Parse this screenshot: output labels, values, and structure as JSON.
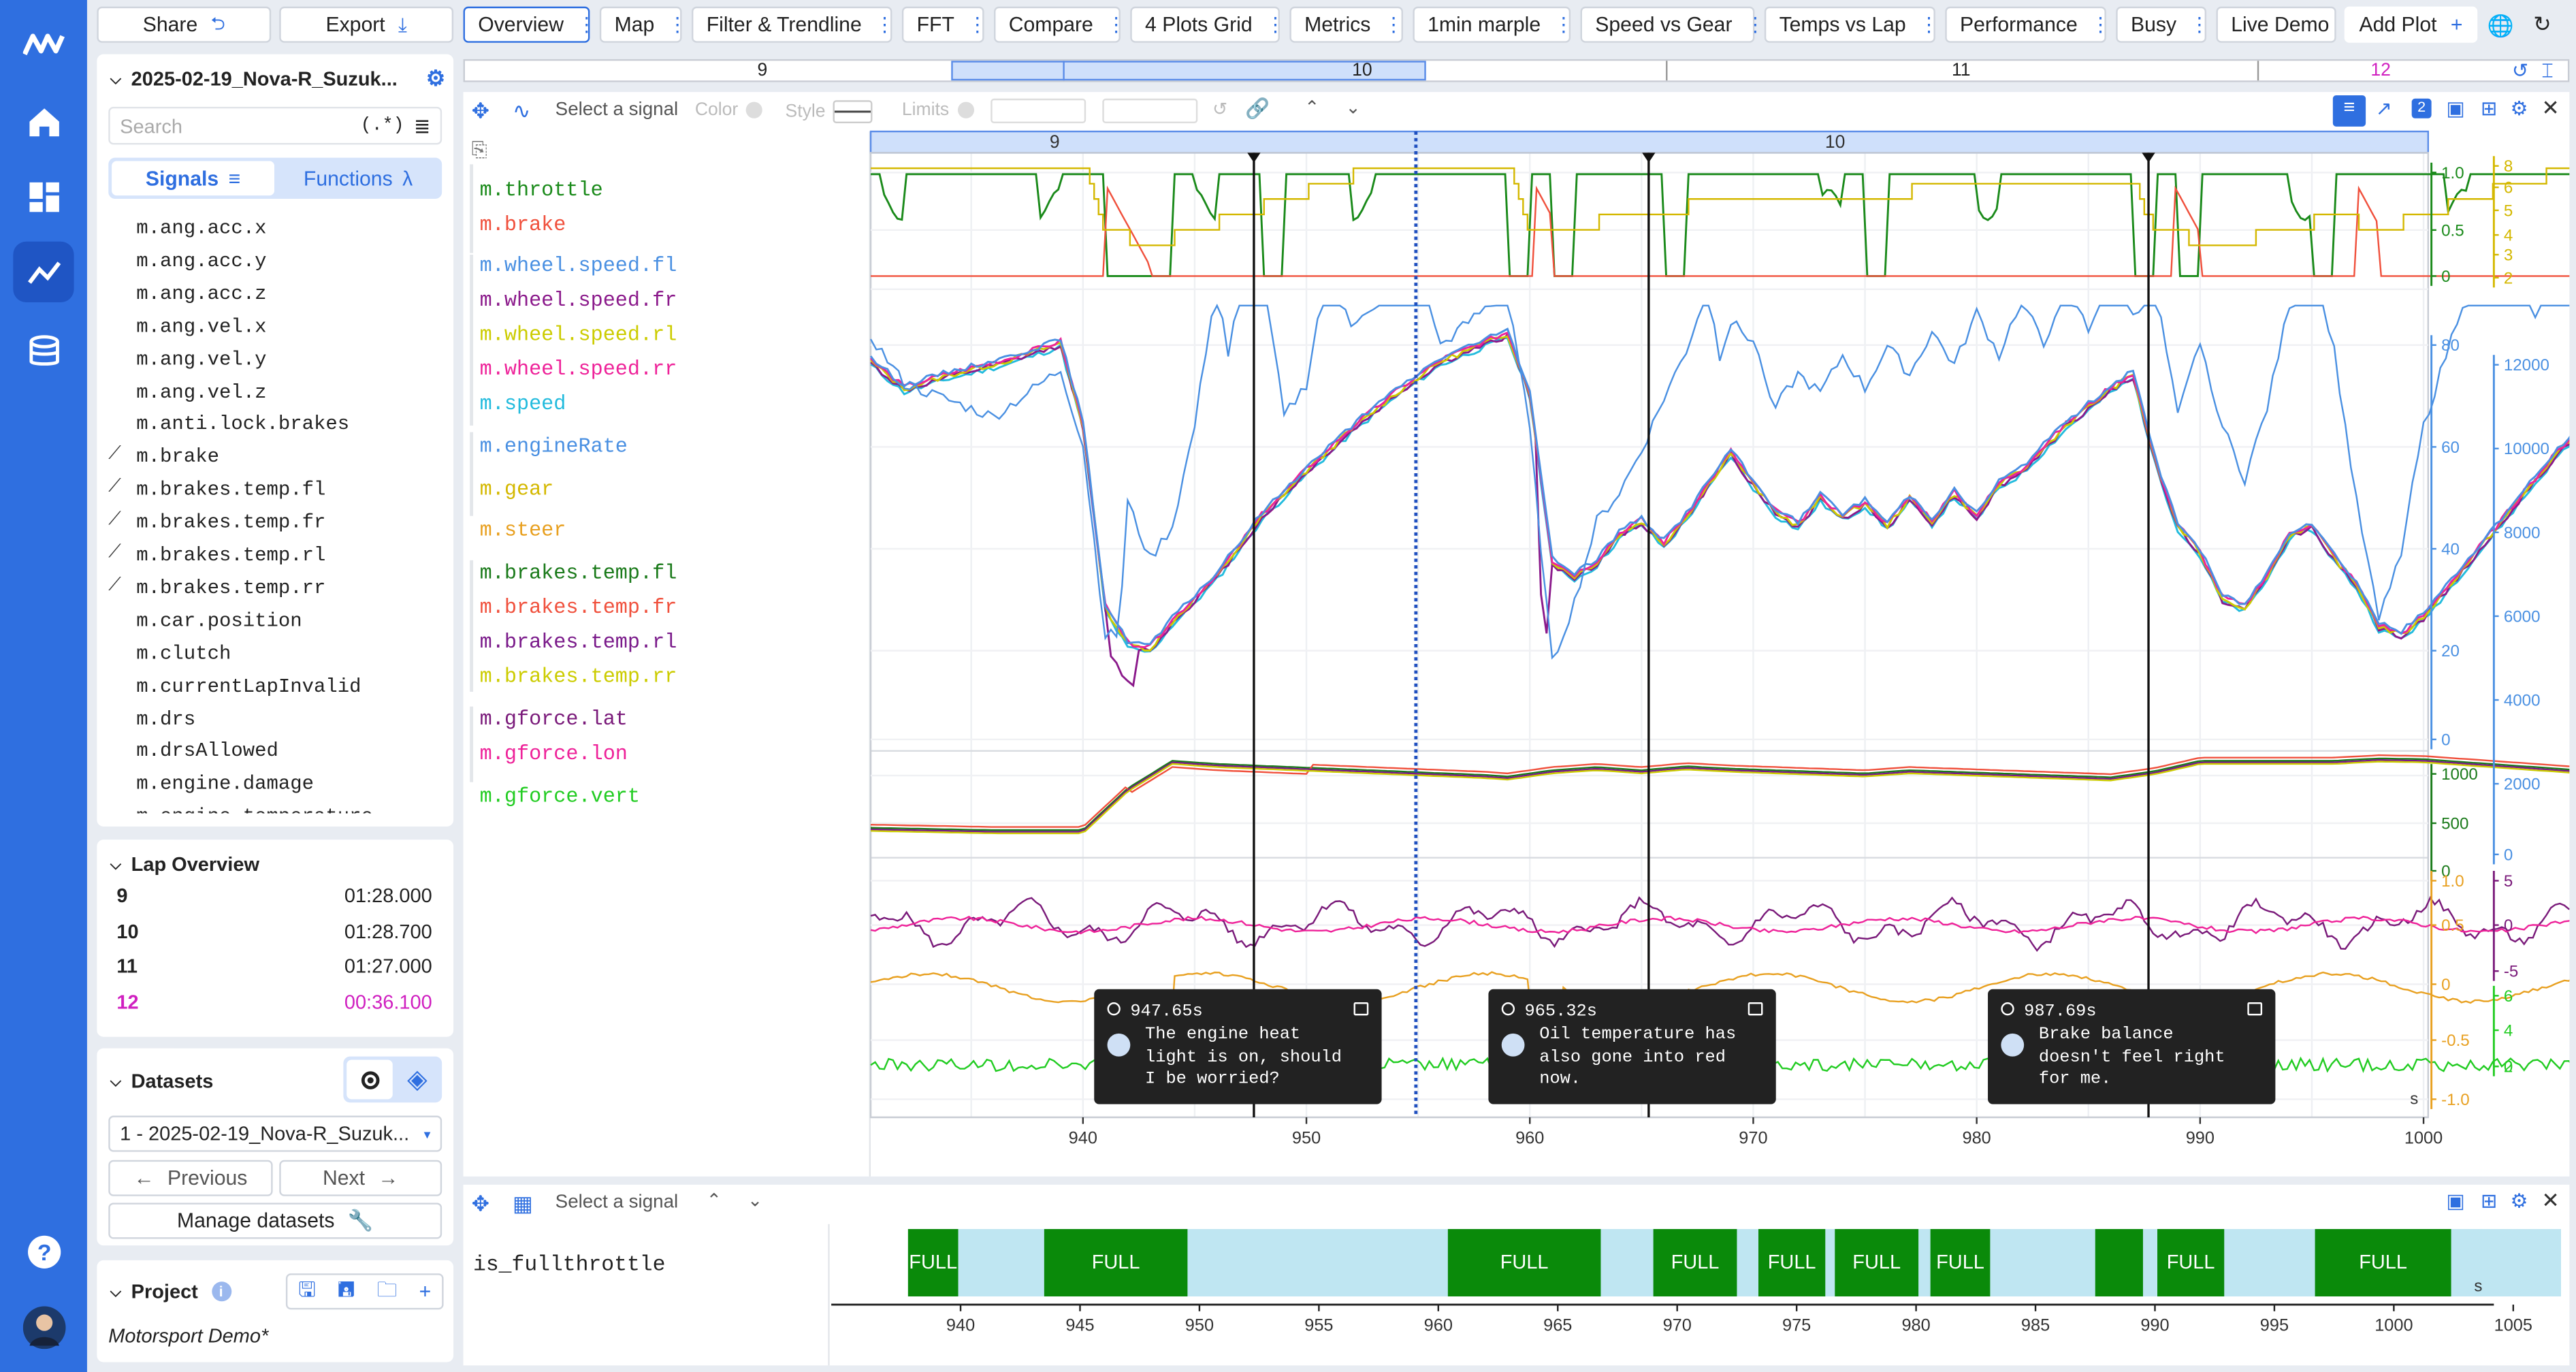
{
  "toolbar": {
    "share": "Share",
    "export": "Export",
    "tabs": [
      "Overview",
      "Map",
      "Filter & Trendline",
      "FFT",
      "Compare",
      "4 Plots Grid",
      "Metrics",
      "1min marple",
      "Speed vs Gear",
      "Temps vs Lap",
      "Performance",
      "Busy",
      "Live Demo"
    ],
    "add_plot": "Add Plot"
  },
  "laps_bar": {
    "l9": "9",
    "l10": "10",
    "l11": "11",
    "l12": "12"
  },
  "sidebar": {
    "dataset_title": "2025-02-19_Nova-R_Suzuk...",
    "search_placeholder": "Search",
    "regex": "(.*)",
    "tab_signals": "Signals",
    "tab_functions": "Functions",
    "signals": [
      "m.ang.acc.x",
      "m.ang.acc.y",
      "m.ang.acc.z",
      "m.ang.vel.x",
      "m.ang.vel.y",
      "m.ang.vel.z",
      "m.anti.lock.brakes",
      "m.brake",
      "m.brakes.temp.fl",
      "m.brakes.temp.fr",
      "m.brakes.temp.rl",
      "m.brakes.temp.rr",
      "m.car.position",
      "m.clutch",
      "m.currentLapInvalid",
      "m.drs",
      "m.drsAllowed",
      "m.engine.damage",
      "m.engine.temperature"
    ],
    "lap_overview_title": "Lap Overview",
    "laps": [
      {
        "lap": "9",
        "time": "01:28.000"
      },
      {
        "lap": "10",
        "time": "01:28.700"
      },
      {
        "lap": "11",
        "time": "01:27.000"
      },
      {
        "lap": "12",
        "time": "00:36.100"
      }
    ],
    "datasets_title": "Datasets",
    "dataset_select": "1 - 2025-02-19_Nova-R_Suzuk...",
    "previous": "Previous",
    "next": "Next",
    "manage": "Manage datasets",
    "project_title": "Project",
    "project_name": "Motorsport Demo*"
  },
  "plot_toolbar": {
    "select_signal": "Select a signal",
    "color": "Color",
    "style": "Style",
    "limits": "Limits"
  },
  "legend": [
    {
      "name": "m.throttle",
      "color": "#1a8a1a"
    },
    {
      "name": "m.brake",
      "color": "#f0503c"
    },
    {
      "name": "m.wheel.speed.fl",
      "color": "#4a90e2"
    },
    {
      "name": "m.wheel.speed.fr",
      "color": "#8b1a8b"
    },
    {
      "name": "m.wheel.speed.rl",
      "color": "#cccc00"
    },
    {
      "name": "m.wheel.speed.rr",
      "color": "#ee2299"
    },
    {
      "name": "m.speed",
      "color": "#22bbdd"
    },
    {
      "name": "m.engineRate",
      "color": "#4a90e2"
    },
    {
      "name": "m.gear",
      "color": "#d4b800"
    },
    {
      "name": "m.steer",
      "color": "#e8a020"
    },
    {
      "name": "m.brakes.temp.fl",
      "color": "#1a7a1a"
    },
    {
      "name": "m.brakes.temp.fr",
      "color": "#f0503c"
    },
    {
      "name": "m.brakes.temp.rl",
      "color": "#7a1a8a"
    },
    {
      "name": "m.brakes.temp.rr",
      "color": "#cccc00"
    },
    {
      "name": "m.gforce.lat",
      "color": "#7a1a7a"
    },
    {
      "name": "m.gforce.lon",
      "color": "#ee2299"
    },
    {
      "name": "m.gforce.vert",
      "color": "#22cc22"
    }
  ],
  "plot": {
    "lap_labels": {
      "a": "9",
      "b": "10"
    },
    "x_ticks": [
      "940",
      "950",
      "960",
      "970",
      "980",
      "990",
      "1000"
    ],
    "x_unit": "s",
    "axis_throttle": [
      "1.0",
      "0.5",
      "0"
    ],
    "axis_gear": [
      "8",
      "6",
      "5",
      "4",
      "3",
      "2"
    ],
    "axis_speed": [
      "80",
      "60",
      "40",
      "20",
      "0"
    ],
    "axis_rpm": [
      "12000",
      "10000",
      "8000",
      "6000",
      "4000",
      "2000",
      "0"
    ],
    "axis_temp": [
      "1000",
      "500",
      "0"
    ],
    "axis_lat": [
      "1.0",
      "0.5",
      "0",
      "-0.5",
      "-1.0"
    ],
    "axis_lon": [
      "5",
      "0",
      "-5"
    ],
    "axis_vert": [
      "6",
      "4",
      "2",
      "0"
    ],
    "annotations": [
      {
        "time": "947.65s",
        "text": "The engine heat\nlight is on, should\nI be worried?"
      },
      {
        "time": "965.32s",
        "text": "Oil temperature has\nalso gone into red\nnow."
      },
      {
        "time": "987.69s",
        "text": "Brake balance\ndoesn't feel right\nfor me."
      }
    ]
  },
  "bottom": {
    "select_signal": "Select a signal",
    "signal": "is_fullthrottle",
    "full_label": "FULL",
    "x_ticks": [
      "940",
      "945",
      "950",
      "955",
      "960",
      "965",
      "970",
      "975",
      "980",
      "985",
      "990",
      "995",
      "1000",
      "1005"
    ],
    "x_unit": "s"
  },
  "colors": {
    "accent": "#2f6fe0",
    "rail": "#2f6fe0",
    "full": "#0a8a0a",
    "off": "#bfe6f2",
    "lap12": "#d020c0"
  }
}
